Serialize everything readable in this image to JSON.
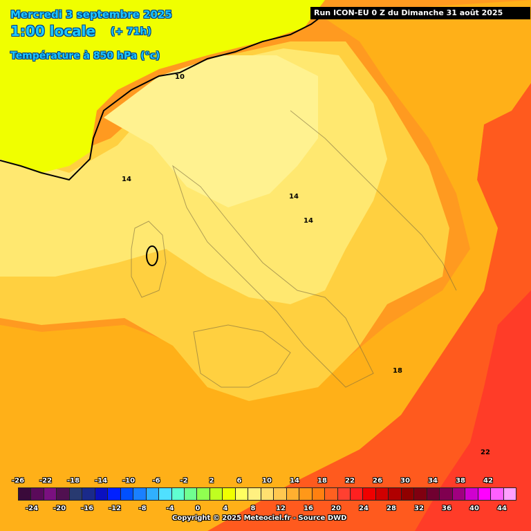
{
  "header": {
    "date": "Mercredi 3 septembre 2025",
    "time": "1:00 locale",
    "offset": "(+ 71h)",
    "parameter": "Température à 850 hPa (°c)",
    "run": "Run ICON-EU 0 Z du Dimanche 31 août 2025"
  },
  "map": {
    "contour_labels": [
      "10",
      "14",
      "14",
      "14",
      "18",
      "22"
    ]
  },
  "legend": {
    "top_ticks": [
      "-26",
      "-22",
      "-18",
      "-14",
      "-10",
      "-6",
      "-2",
      "2",
      "6",
      "10",
      "14",
      "18",
      "22",
      "26",
      "30",
      "34",
      "38",
      "42"
    ],
    "bottom_ticks": [
      "-24",
      "-20",
      "-16",
      "-12",
      "-8",
      "-4",
      "0",
      "4",
      "8",
      "12",
      "16",
      "20",
      "24",
      "28",
      "32",
      "36",
      "40",
      "44"
    ],
    "colors": [
      "#3a0a3a",
      "#5a0a5a",
      "#7a1080",
      "#501050",
      "#283a70",
      "#1a2a8a",
      "#0a10c0",
      "#0020ff",
      "#0050ff",
      "#1a80ff",
      "#30b0ff",
      "#50e0ff",
      "#60ffd0",
      "#70ff90",
      "#90ff50",
      "#c0ff20",
      "#f0ff00",
      "#ffff60",
      "#fff080",
      "#ffe070",
      "#ffc850",
      "#ffb030",
      "#ff9818",
      "#ff8010",
      "#ff6020",
      "#ff4030",
      "#ff2020",
      "#f00000",
      "#d00000",
      "#b00000",
      "#900000",
      "#800010",
      "#700030",
      "#800050",
      "#a00080",
      "#d000d0",
      "#ff00ff",
      "#ff60ff",
      "#ffa0ff"
    ],
    "copyright": "Copyright © 2025 Meteociel.fr - Source DWD"
  }
}
